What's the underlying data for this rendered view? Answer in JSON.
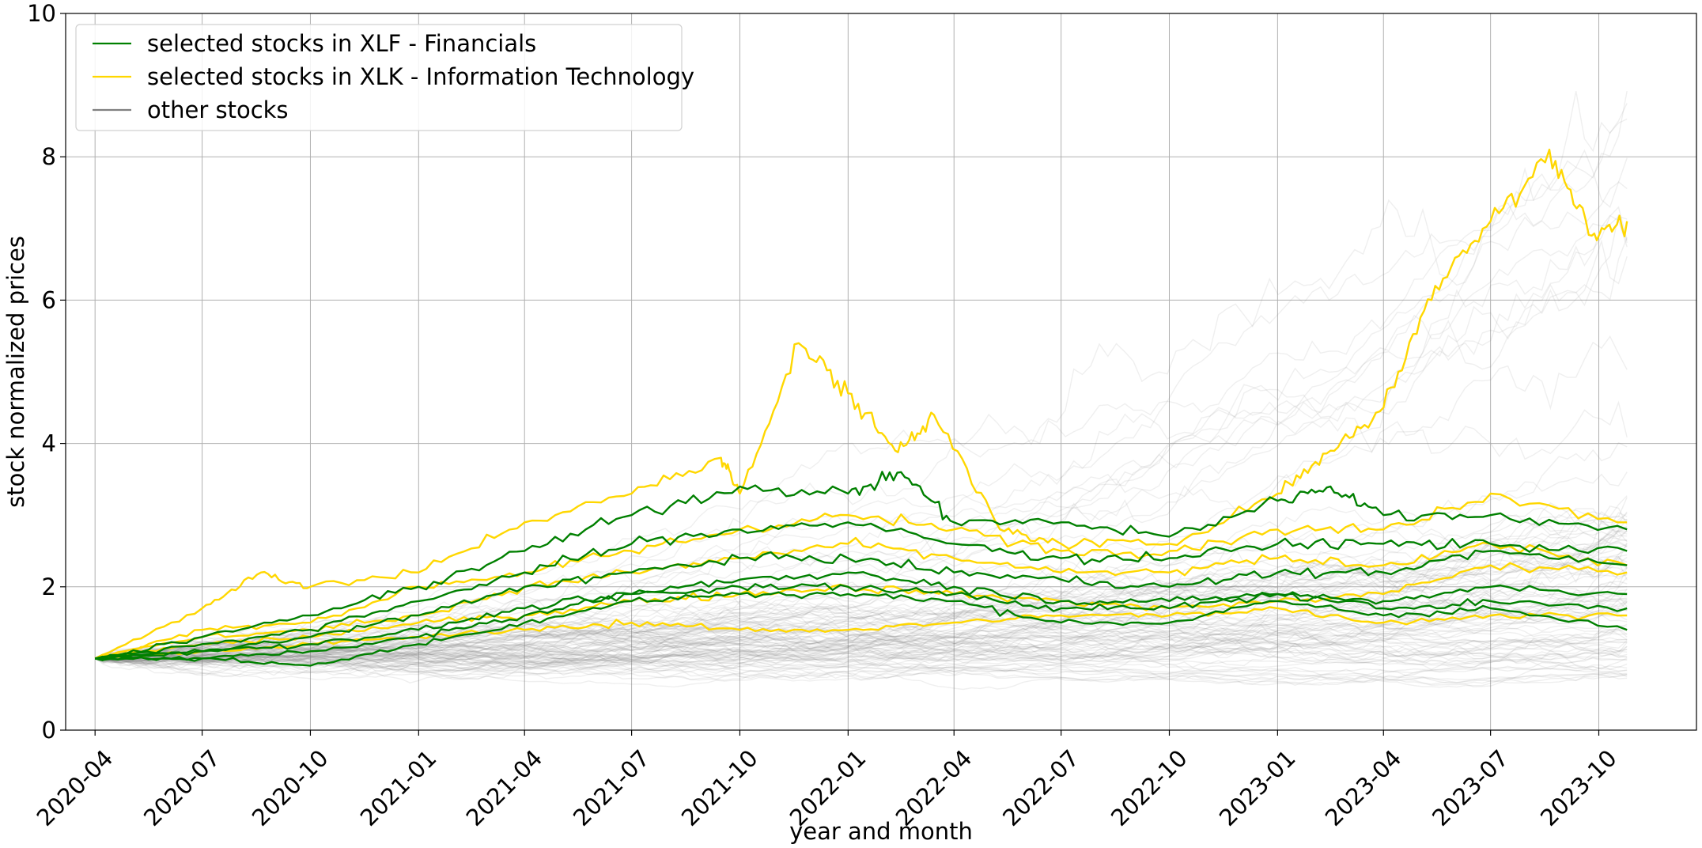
{
  "chart_data": {
    "type": "line",
    "title": "",
    "xlabel": "year and month",
    "ylabel": "stock normalized prices",
    "ylim": [
      0,
      10
    ],
    "xlim": [
      "2020-03-07",
      "2023-12-23"
    ],
    "yticks": [
      0,
      2,
      4,
      6,
      8,
      10
    ],
    "xticks": [
      "2020-04",
      "2020-07",
      "2020-10",
      "2021-01",
      "2021-04",
      "2021-07",
      "2021-10",
      "2022-01",
      "2022-04",
      "2022-07",
      "2022-10",
      "2023-01",
      "2023-04",
      "2023-07",
      "2023-10"
    ],
    "grid": true,
    "legend_position": "top-left",
    "legend": [
      {
        "label": "selected stocks in XLF - Financials",
        "color": "#008000"
      },
      {
        "label": "selected stocks in XLK - Information Technology",
        "color": "#ffd700"
      },
      {
        "label": "other stocks",
        "color": "#808080"
      }
    ],
    "series": [
      {
        "group": "XLK",
        "color": "#ffd700",
        "x": [
          "2020-04-01",
          "2020-07-01",
          "2020-08-20",
          "2020-10-01",
          "2021-01-01",
          "2021-04-01",
          "2021-07-01",
          "2021-09-15",
          "2021-10-01",
          "2021-11-20",
          "2022-01-01",
          "2022-02-10",
          "2022-03-15",
          "2022-05-10",
          "2022-07-01",
          "2022-10-01",
          "2023-01-01",
          "2023-02-15",
          "2023-04-01",
          "2023-05-15",
          "2023-07-01",
          "2023-08-20",
          "2023-09-25",
          "2023-10-25"
        ],
        "y": [
          1.0,
          1.7,
          2.2,
          2.0,
          2.2,
          2.9,
          3.3,
          3.8,
          3.3,
          5.4,
          4.7,
          3.9,
          4.4,
          2.8,
          2.6,
          2.6,
          3.3,
          3.9,
          4.5,
          6.2,
          7.1,
          8.1,
          6.9,
          7.1
        ]
      },
      {
        "group": "XLK",
        "color": "#ffd700",
        "x": [
          "2020-04-01",
          "2020-07-01",
          "2020-10-01",
          "2021-01-01",
          "2021-04-01",
          "2021-07-01",
          "2021-10-01",
          "2022-01-01",
          "2022-04-01",
          "2022-07-01",
          "2022-10-01",
          "2023-01-01",
          "2023-04-01",
          "2023-07-01",
          "2023-10-25"
        ],
        "y": [
          1.0,
          1.4,
          1.5,
          2.0,
          2.2,
          2.5,
          2.8,
          3.0,
          2.8,
          2.5,
          2.5,
          2.8,
          2.8,
          3.3,
          2.9
        ]
      },
      {
        "group": "XLK",
        "color": "#ffd700",
        "x": [
          "2020-04-01",
          "2020-07-01",
          "2020-10-01",
          "2021-01-01",
          "2021-04-01",
          "2021-07-01",
          "2021-10-01",
          "2022-01-01",
          "2022-04-01",
          "2022-07-01",
          "2022-10-01",
          "2023-01-01",
          "2023-04-01",
          "2023-07-01",
          "2023-10-25"
        ],
        "y": [
          1.0,
          1.3,
          1.4,
          1.6,
          2.0,
          2.2,
          2.4,
          2.6,
          2.4,
          2.2,
          2.2,
          2.4,
          2.3,
          2.6,
          2.3
        ]
      },
      {
        "group": "XLK",
        "color": "#ffd700",
        "x": [
          "2020-04-01",
          "2020-07-01",
          "2020-10-01",
          "2021-01-01",
          "2021-04-01",
          "2021-07-01",
          "2021-10-01",
          "2022-01-01",
          "2022-04-01",
          "2022-07-01",
          "2022-10-01",
          "2023-01-01",
          "2023-04-01",
          "2023-07-01",
          "2023-10-25"
        ],
        "y": [
          1.0,
          1.2,
          1.3,
          1.5,
          1.6,
          1.8,
          1.9,
          2.0,
          1.9,
          1.8,
          1.7,
          1.8,
          1.9,
          2.3,
          2.2
        ]
      },
      {
        "group": "XLK",
        "color": "#ffd700",
        "x": [
          "2020-04-01",
          "2020-07-01",
          "2020-10-01",
          "2021-01-01",
          "2021-04-01",
          "2021-07-01",
          "2021-10-01",
          "2022-01-01",
          "2022-04-01",
          "2022-07-01",
          "2022-10-01",
          "2023-01-01",
          "2023-04-01",
          "2023-07-01",
          "2023-10-25"
        ],
        "y": [
          1.0,
          1.1,
          1.2,
          1.3,
          1.4,
          1.5,
          1.4,
          1.4,
          1.5,
          1.6,
          1.6,
          1.7,
          1.5,
          1.6,
          1.6
        ]
      },
      {
        "group": "XLF",
        "color": "#008000",
        "x": [
          "2020-04-01",
          "2020-07-01",
          "2020-10-01",
          "2021-01-01",
          "2021-04-01",
          "2021-07-01",
          "2021-10-01",
          "2022-01-01",
          "2022-02-15",
          "2022-04-01",
          "2022-07-01",
          "2022-10-01",
          "2023-01-01",
          "2023-02-15",
          "2023-04-01",
          "2023-07-01",
          "2023-10-25"
        ],
        "y": [
          1.0,
          1.3,
          1.6,
          2.0,
          2.5,
          3.0,
          3.4,
          3.3,
          3.6,
          2.9,
          2.9,
          2.7,
          3.2,
          3.4,
          3.0,
          3.0,
          2.8
        ]
      },
      {
        "group": "XLF",
        "color": "#008000",
        "x": [
          "2020-04-01",
          "2020-07-01",
          "2020-10-01",
          "2021-01-01",
          "2021-04-01",
          "2021-07-01",
          "2021-10-01",
          "2022-01-01",
          "2022-04-01",
          "2022-07-01",
          "2022-10-01",
          "2023-01-01",
          "2023-04-01",
          "2023-07-01",
          "2023-10-25"
        ],
        "y": [
          1.0,
          1.2,
          1.4,
          1.8,
          2.2,
          2.6,
          2.8,
          2.9,
          2.6,
          2.4,
          2.4,
          2.6,
          2.6,
          2.6,
          2.5
        ]
      },
      {
        "group": "XLF",
        "color": "#008000",
        "x": [
          "2020-04-01",
          "2020-07-01",
          "2020-10-01",
          "2021-01-01",
          "2021-04-01",
          "2021-07-01",
          "2021-10-01",
          "2022-01-01",
          "2022-04-01",
          "2022-07-01",
          "2022-10-01",
          "2023-01-01",
          "2023-04-01",
          "2023-07-01",
          "2023-10-25"
        ],
        "y": [
          1.0,
          1.1,
          1.3,
          1.6,
          2.0,
          2.2,
          2.4,
          2.4,
          2.2,
          2.1,
          2.0,
          2.2,
          2.2,
          2.5,
          2.3
        ]
      },
      {
        "group": "XLF",
        "color": "#008000",
        "x": [
          "2020-04-01",
          "2020-07-01",
          "2020-10-01",
          "2021-01-01",
          "2021-04-01",
          "2021-07-01",
          "2021-10-01",
          "2022-01-01",
          "2022-04-01",
          "2022-07-01",
          "2022-10-01",
          "2023-01-01",
          "2023-04-01",
          "2023-07-01",
          "2023-10-25"
        ],
        "y": [
          1.0,
          1.1,
          1.2,
          1.4,
          1.7,
          1.9,
          2.1,
          2.2,
          2.0,
          1.8,
          1.8,
          1.9,
          1.8,
          2.0,
          1.9
        ]
      },
      {
        "group": "XLF",
        "color": "#008000",
        "x": [
          "2020-04-01",
          "2020-07-01",
          "2020-10-01",
          "2021-01-01",
          "2021-04-01",
          "2021-07-01",
          "2021-10-01",
          "2022-01-01",
          "2022-04-01",
          "2022-07-01",
          "2022-10-01",
          "2023-01-01",
          "2023-04-01",
          "2023-07-01",
          "2023-10-25"
        ],
        "y": [
          1.0,
          1.0,
          1.1,
          1.3,
          1.6,
          1.9,
          2.0,
          2.0,
          1.9,
          1.7,
          1.7,
          1.9,
          1.7,
          1.8,
          1.7
        ]
      },
      {
        "group": "XLF",
        "color": "#008000",
        "x": [
          "2020-04-01",
          "2020-07-01",
          "2020-10-01",
          "2021-01-01",
          "2021-04-01",
          "2021-07-01",
          "2021-10-01",
          "2022-01-01",
          "2022-04-01",
          "2022-07-01",
          "2022-10-01",
          "2023-01-01",
          "2023-04-01",
          "2023-07-01",
          "2023-10-25"
        ],
        "y": [
          1.0,
          1.0,
          0.9,
          1.2,
          1.5,
          1.8,
          1.9,
          1.9,
          1.8,
          1.5,
          1.5,
          1.8,
          1.6,
          1.7,
          1.4
        ]
      }
    ]
  }
}
